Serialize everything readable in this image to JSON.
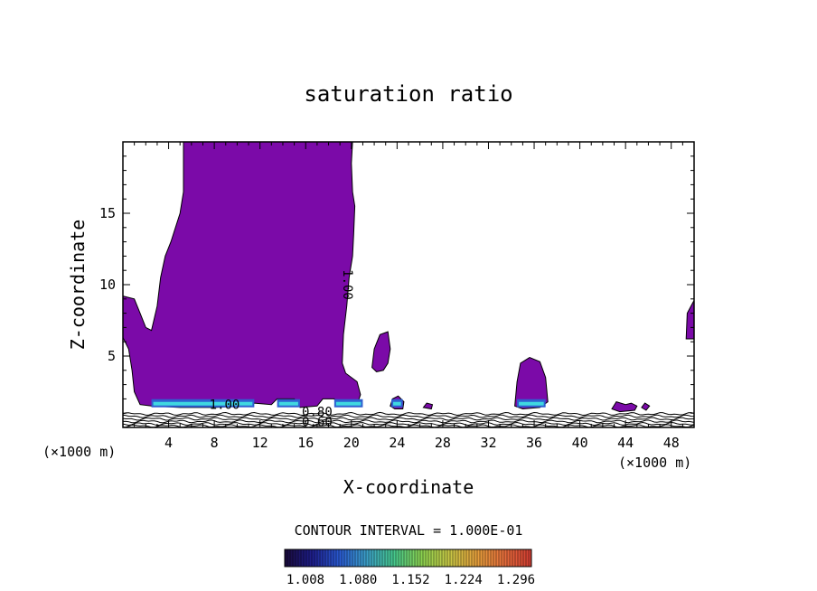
{
  "chart_data": {
    "type": "contour",
    "title": "saturation ratio",
    "xlabel": "X-coordinate",
    "ylabel": "Z-coordinate",
    "x_unit_left": "(×1000 m)",
    "x_unit_right": "(×1000 m)",
    "xlim": [
      0,
      50
    ],
    "ylim": [
      0,
      20
    ],
    "x_ticks": [
      {
        "value": 4,
        "label": "4"
      },
      {
        "value": 8,
        "label": "8"
      },
      {
        "value": 12,
        "label": "12"
      },
      {
        "value": 16,
        "label": "16"
      },
      {
        "value": 20,
        "label": "20"
      },
      {
        "value": 24,
        "label": "24"
      },
      {
        "value": 28,
        "label": "28"
      },
      {
        "value": 32,
        "label": "32"
      },
      {
        "value": 36,
        "label": "36"
      },
      {
        "value": 40,
        "label": "40"
      },
      {
        "value": 44,
        "label": "44"
      },
      {
        "value": 48,
        "label": "48"
      }
    ],
    "y_ticks": [
      {
        "value": 5,
        "label": "5"
      },
      {
        "value": 10,
        "label": "10"
      },
      {
        "value": 15,
        "label": "15"
      }
    ],
    "contour_interval_text": "CONTOUR INTERVAL = 1.000E-01",
    "contour_labels": [
      {
        "text": "1.00",
        "x": 19.3,
        "y": 10.0,
        "rotate": 90
      },
      {
        "text": "1.00",
        "x": 8.9,
        "y": 1.3,
        "rotate": 0
      },
      {
        "text": "0.80",
        "x": 17.0,
        "y": 0.8,
        "rotate": 0
      },
      {
        "text": "0.60",
        "x": 17.0,
        "y": 0.1,
        "rotate": 0
      }
    ],
    "colorbar": {
      "labels": [
        "1.008",
        "1.080",
        "1.152",
        "1.224",
        "1.296"
      ],
      "colors": [
        "#1a0a3a",
        "#1e1e8c",
        "#2a5ad2",
        "#3ca0c8",
        "#46c88c",
        "#8cd250",
        "#c8c846",
        "#e6a03c",
        "#e66e3c",
        "#d23c32"
      ]
    },
    "fill_color": "#7b0aa8",
    "regions": [
      {
        "name": "main-cloud",
        "polygon": [
          [
            0,
            9.2
          ],
          [
            1.0,
            9.0
          ],
          [
            1.5,
            8.0
          ],
          [
            2.0,
            7.0
          ],
          [
            2.5,
            6.8
          ],
          [
            3.0,
            8.5
          ],
          [
            3.3,
            10.5
          ],
          [
            3.7,
            12.0
          ],
          [
            4.2,
            13.0
          ],
          [
            5.0,
            15.0
          ],
          [
            5.3,
            16.5
          ],
          [
            5.3,
            20
          ],
          [
            20.1,
            20
          ],
          [
            20.0,
            18.5
          ],
          [
            20.1,
            16.5
          ],
          [
            20.3,
            15.5
          ],
          [
            20.2,
            13.5
          ],
          [
            20.1,
            12.0
          ],
          [
            19.8,
            10.5
          ],
          [
            19.6,
            8.5
          ],
          [
            19.3,
            6.5
          ],
          [
            19.2,
            4.5
          ],
          [
            19.5,
            3.8
          ],
          [
            20.5,
            3.2
          ],
          [
            20.8,
            2.3
          ],
          [
            20.5,
            1.6
          ],
          [
            19.0,
            1.5
          ],
          [
            18.5,
            2.0
          ],
          [
            17.5,
            2.0
          ],
          [
            17.0,
            1.5
          ],
          [
            15.5,
            1.4
          ],
          [
            15.0,
            2.0
          ],
          [
            13.5,
            2.0
          ],
          [
            13.0,
            1.6
          ],
          [
            11.5,
            1.7
          ],
          [
            10.5,
            1.5
          ],
          [
            8.0,
            1.4
          ],
          [
            5.0,
            1.4
          ],
          [
            2.5,
            1.5
          ],
          [
            1.5,
            1.6
          ],
          [
            1.0,
            2.5
          ],
          [
            0.8,
            4.0
          ],
          [
            0.5,
            5.5
          ],
          [
            0,
            6.3
          ]
        ]
      },
      {
        "name": "cell-23",
        "polygon": [
          [
            21.8,
            4.2
          ],
          [
            22.0,
            5.5
          ],
          [
            22.5,
            6.5
          ],
          [
            23.2,
            6.7
          ],
          [
            23.4,
            5.5
          ],
          [
            23.2,
            4.5
          ],
          [
            22.8,
            4.0
          ],
          [
            22.2,
            3.9
          ]
        ]
      },
      {
        "name": "cell-36",
        "polygon": [
          [
            34.3,
            1.5
          ],
          [
            34.5,
            3.2
          ],
          [
            34.8,
            4.5
          ],
          [
            35.6,
            4.9
          ],
          [
            36.5,
            4.6
          ],
          [
            37.0,
            3.5
          ],
          [
            37.2,
            1.8
          ],
          [
            36.5,
            1.4
          ],
          [
            35.0,
            1.3
          ]
        ]
      },
      {
        "name": "cell-24-low",
        "polygon": [
          [
            23.4,
            1.5
          ],
          [
            23.6,
            2.0
          ],
          [
            24.1,
            2.2
          ],
          [
            24.6,
            1.8
          ],
          [
            24.5,
            1.3
          ],
          [
            23.8,
            1.3
          ]
        ]
      },
      {
        "name": "cell-27",
        "polygon": [
          [
            26.3,
            1.4
          ],
          [
            26.6,
            1.7
          ],
          [
            27.1,
            1.6
          ],
          [
            27.0,
            1.3
          ]
        ]
      },
      {
        "name": "cell-43",
        "polygon": [
          [
            42.8,
            1.3
          ],
          [
            43.2,
            1.8
          ],
          [
            44.0,
            1.6
          ],
          [
            44.5,
            1.7
          ],
          [
            45.0,
            1.5
          ],
          [
            44.8,
            1.2
          ],
          [
            43.5,
            1.1
          ]
        ]
      },
      {
        "name": "cell-45",
        "polygon": [
          [
            45.4,
            1.4
          ],
          [
            45.7,
            1.7
          ],
          [
            46.1,
            1.5
          ],
          [
            45.8,
            1.2
          ]
        ]
      },
      {
        "name": "edge-49",
        "polygon": [
          [
            50,
            8.9
          ],
          [
            49.4,
            8.0
          ],
          [
            49.3,
            6.2
          ],
          [
            50,
            6.2
          ]
        ]
      }
    ],
    "highlights": [
      {
        "x0": 2.5,
        "x1": 11.5,
        "y": 1.6
      },
      {
        "x0": 13.5,
        "x1": 15.5,
        "y": 1.6
      },
      {
        "x0": 18.5,
        "x1": 21.0,
        "y": 1.6
      },
      {
        "x0": 23.5,
        "x1": 24.5,
        "y": 1.6
      },
      {
        "x0": 34.5,
        "x1": 37.0,
        "y": 1.6
      }
    ]
  }
}
